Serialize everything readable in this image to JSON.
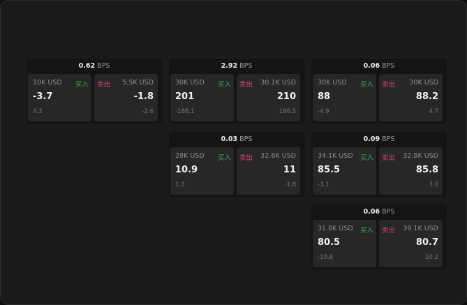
{
  "unit": "BPS",
  "buy_label": "买入",
  "sell_label": "卖出",
  "colors": {
    "buy": "#2fae5f",
    "sell": "#e0436f"
  },
  "panels": [
    {
      "spread": "0.62",
      "buy": {
        "size": "10K USD",
        "price": "-3.7",
        "change": "4.3"
      },
      "sell": {
        "size": "5.5K USD",
        "price": "-1.8",
        "change": "-2.6"
      }
    },
    {
      "spread": "2.92",
      "buy": {
        "size": "30K USD",
        "price": "201",
        "change": "-188.1"
      },
      "sell": {
        "size": "30.1K USD",
        "price": "210",
        "change": "196.5"
      }
    },
    {
      "spread": "0.06",
      "buy": {
        "size": "30K USD",
        "price": "88",
        "change": "-4.9"
      },
      "sell": {
        "size": "30K USD",
        "price": "88.2",
        "change": "4.7"
      }
    },
    {
      "spread": "0.03",
      "buy": {
        "size": "28K USD",
        "price": "10.9",
        "change": "1.3"
      },
      "sell": {
        "size": "32.6K USD",
        "price": "11",
        "change": "-1.8"
      }
    },
    {
      "spread": "0.09",
      "buy": {
        "size": "34.1K USD",
        "price": "85.5",
        "change": "-3.1"
      },
      "sell": {
        "size": "32.8K USD",
        "price": "85.8",
        "change": "3.0"
      }
    },
    {
      "spread": "0.06",
      "buy": {
        "size": "31.8K USD",
        "price": "80.5",
        "change": "-10.8"
      },
      "sell": {
        "size": "39.1K USD",
        "price": "80.7",
        "change": "10.2"
      }
    }
  ]
}
